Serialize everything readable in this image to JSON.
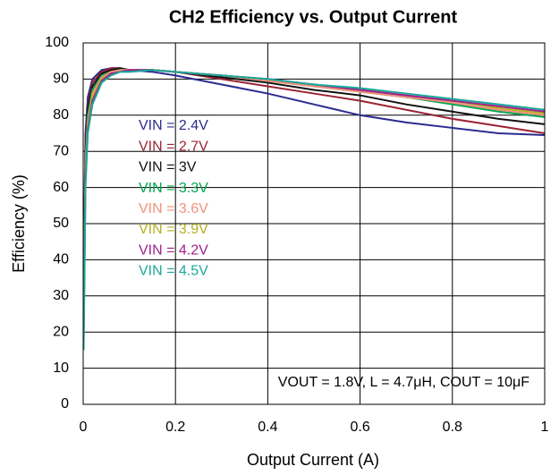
{
  "chart_data": {
    "type": "line",
    "title": "CH2 Efficiency vs. Output Current",
    "x_label": "Output Current (A)",
    "y_label": "Efficiency (%)",
    "annotation": "VOUT = 1.8V, L = 4.7μH, COUT = 10μF",
    "x": [
      0.001,
      0.005,
      0.01,
      0.02,
      0.04,
      0.06,
      0.08,
      0.1,
      0.15,
      0.2,
      0.3,
      0.4,
      0.5,
      0.6,
      0.7,
      0.8,
      0.9,
      1.0
    ],
    "series": [
      {
        "name": "VIN = 2.4V",
        "color": "#2b2b8f",
        "values": [
          40,
          75,
          85,
          90,
          92.5,
          93,
          93,
          92.5,
          92,
          91,
          88.5,
          86,
          83,
          80,
          78,
          76.5,
          75,
          74.5
        ]
      },
      {
        "name": "VIN = 2.7V",
        "color": "#9b2335",
        "values": [
          35,
          72,
          83,
          89,
          92,
          93,
          93,
          92.5,
          92.5,
          92,
          90,
          88,
          86,
          84,
          81.5,
          79,
          77,
          75
        ]
      },
      {
        "name": "VIN = 3V",
        "color": "#111111",
        "values": [
          30,
          70,
          82,
          88,
          91.5,
          92.5,
          93,
          92.5,
          92.5,
          92,
          90.5,
          89,
          87,
          85.5,
          83,
          81,
          79,
          77.5
        ]
      },
      {
        "name": "VIN = 3.3V",
        "color": "#00a651",
        "values": [
          25,
          68,
          80,
          87,
          91,
          92,
          92.5,
          92.5,
          92.5,
          92,
          91,
          89.5,
          88,
          86.5,
          85,
          83,
          81,
          79.5
        ]
      },
      {
        "name": "VIN = 3.6V",
        "color": "#f4907a",
        "values": [
          22,
          66,
          78,
          86,
          90.5,
          92,
          92.5,
          92.5,
          92.5,
          92,
          91,
          89.5,
          88,
          86.5,
          85,
          83.5,
          81.5,
          80
        ]
      },
      {
        "name": "VIN = 3.9V",
        "color": "#b5b022",
        "values": [
          20,
          64,
          77,
          85,
          90,
          91.5,
          92,
          92.5,
          92.5,
          92,
          91,
          90,
          88.5,
          87,
          85.5,
          84,
          82,
          80.5
        ]
      },
      {
        "name": "VIN = 4.2V",
        "color": "#a0208e",
        "values": [
          18,
          62,
          76,
          84,
          89.5,
          91.5,
          92,
          92.5,
          92.5,
          92,
          91,
          90,
          88.5,
          87,
          85.5,
          84,
          82.5,
          81
        ]
      },
      {
        "name": "VIN = 4.5V",
        "color": "#1aa89a",
        "values": [
          15,
          60,
          75,
          83,
          89,
          91,
          92,
          92,
          92.5,
          92,
          91,
          90,
          88.5,
          87.5,
          86,
          84.5,
          83,
          81.5
        ]
      }
    ],
    "xlim": [
      0,
      1
    ],
    "xticks": [
      0,
      0.2,
      0.4,
      0.6,
      0.8,
      1
    ],
    "ylim": [
      0,
      100
    ],
    "yticks": [
      0,
      10,
      20,
      30,
      40,
      50,
      60,
      70,
      80,
      90,
      100
    ],
    "grid": true
  }
}
